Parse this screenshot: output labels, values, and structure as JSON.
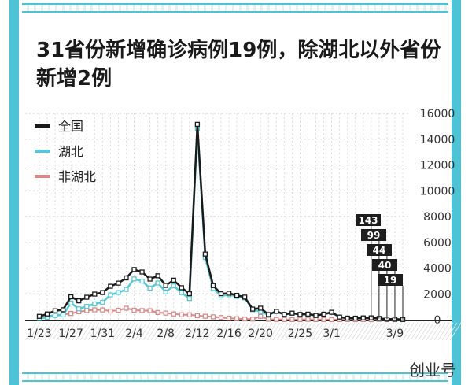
{
  "header": {
    "title": "31省份新增确诊病例19例，除湖北以外省份新增2例"
  },
  "watermark": "创业号",
  "colors": {
    "frame": "#4fc3d6",
    "national": "#1a1a1a",
    "hubei": "#5ac8d4",
    "non_hubei": "#d98a8a",
    "grid": "#cccccc"
  },
  "chart_data": {
    "type": "line",
    "title": "31省份新增确诊病例19例，除湖北以外省份新增2例",
    "x_tick_labels": [
      "1/23",
      "1/27",
      "1/31",
      "2/4",
      "2/8",
      "2/12",
      "2/16",
      "2/20",
      "2/25",
      "3/1",
      "3/9"
    ],
    "x_tick_index": [
      0,
      4,
      8,
      12,
      16,
      20,
      24,
      28,
      33,
      37,
      45
    ],
    "y_ticks": [
      0,
      2000,
      4000,
      6000,
      8000,
      10000,
      12000,
      14000,
      16000
    ],
    "ylim": [
      0,
      16000
    ],
    "grid": true,
    "legend_position": "top-left",
    "x": [
      "1/23",
      "1/24",
      "1/25",
      "1/26",
      "1/27",
      "1/28",
      "1/29",
      "1/30",
      "1/31",
      "2/1",
      "2/2",
      "2/3",
      "2/4",
      "2/5",
      "2/6",
      "2/7",
      "2/8",
      "2/9",
      "2/10",
      "2/11",
      "2/12",
      "2/13",
      "2/14",
      "2/15",
      "2/16",
      "2/17",
      "2/18",
      "2/19",
      "2/20",
      "2/21",
      "2/22",
      "2/23",
      "2/24",
      "2/25",
      "2/26",
      "2/27",
      "2/28",
      "2/29",
      "3/1",
      "3/2",
      "3/3",
      "3/4",
      "3/5",
      "3/6",
      "3/7",
      "3/8",
      "3/9"
    ],
    "series": [
      {
        "name": "全国",
        "values": [
          259,
          444,
          688,
          769,
          1771,
          1459,
          1737,
          1982,
          2102,
          2590,
          2829,
          3235,
          3887,
          3694,
          3143,
          3399,
          2656,
          3062,
          2478,
          2015,
          15152,
          5090,
          2641,
          2009,
          2048,
          1886,
          1749,
          820,
          889,
          397,
          648,
          409,
          508,
          406,
          433,
          327,
          427,
          573,
          202,
          125,
          119,
          139,
          143,
          99,
          44,
          40,
          19
        ]
      },
      {
        "name": "湖北",
        "values": [
          105,
          180,
          323,
          371,
          1291,
          840,
          1032,
          1220,
          1347,
          1921,
          2103,
          2345,
          3156,
          2987,
          2447,
          2841,
          2147,
          2618,
          2097,
          1638,
          14840,
          4823,
          2420,
          1843,
          1933,
          1807,
          1693,
          775,
          631,
          366,
          630,
          398,
          499,
          401,
          409,
          318,
          423,
          570,
          196,
          114,
          115,
          134,
          139,
          74,
          41,
          36,
          17
        ]
      },
      {
        "name": "非湖北",
        "values": [
          154,
          264,
          365,
          398,
          480,
          619,
          705,
          762,
          755,
          669,
          726,
          890,
          731,
          707,
          696,
          558,
          509,
          444,
          381,
          377,
          312,
          267,
          221,
          166,
          115,
          79,
          56,
          45,
          258,
          31,
          18,
          11,
          9,
          5,
          24,
          9,
          4,
          3,
          6,
          11,
          4,
          5,
          4,
          25,
          3,
          4,
          2
        ]
      }
    ],
    "value_labels": [
      "143",
      "99",
      "44",
      "40",
      "19"
    ],
    "value_label_index": [
      42,
      43,
      44,
      45,
      46
    ]
  }
}
